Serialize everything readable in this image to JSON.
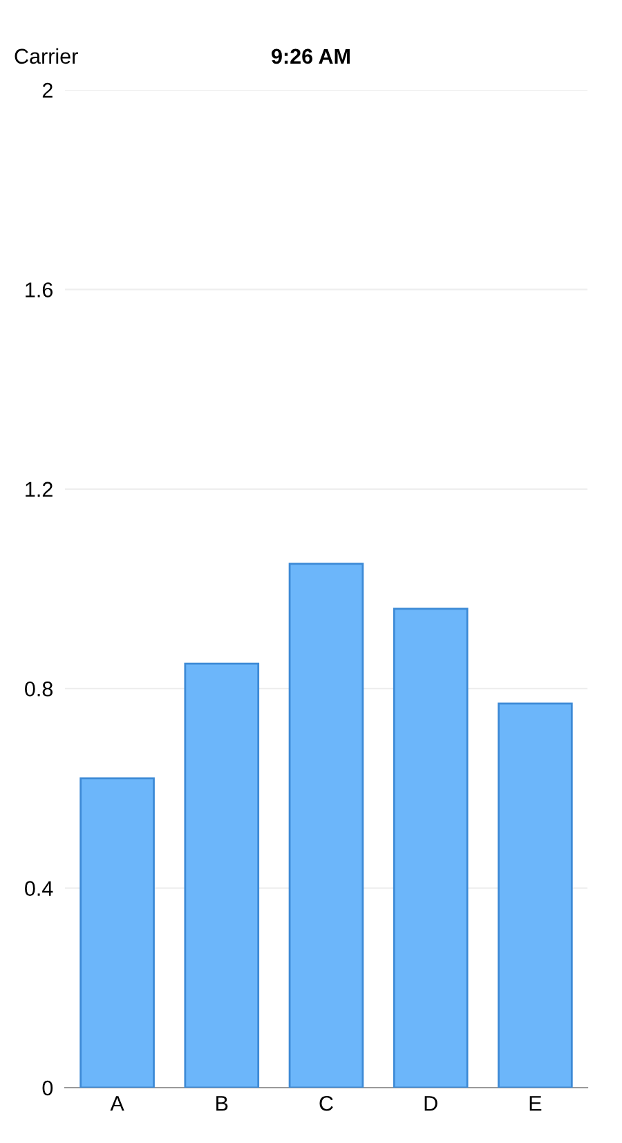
{
  "chart_data": {
    "type": "bar",
    "categories": [
      "A",
      "B",
      "C",
      "D",
      "E"
    ],
    "values": [
      0.62,
      0.85,
      1.05,
      0.96,
      0.77
    ],
    "color": "#6cb6fa",
    "ylim": [
      0,
      2
    ],
    "yticks": [
      0,
      0.4,
      0.8,
      1.2,
      1.6,
      2
    ],
    "grid": "y",
    "annotations": [
      "Carrier",
      "9:26 AM"
    ]
  }
}
